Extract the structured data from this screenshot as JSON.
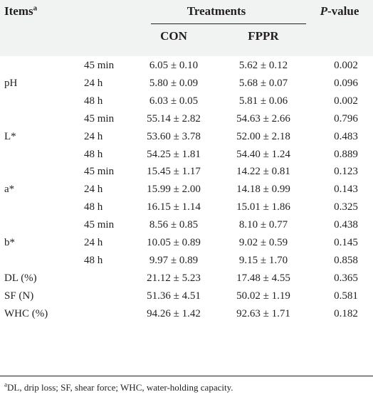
{
  "header": {
    "items_label": "Items",
    "items_sup": "a",
    "treatments_label": "Treatments",
    "pvalue_italic": "P",
    "pvalue_rest": "-value",
    "col_con": "CON",
    "col_fppr": "FPPR"
  },
  "groups": [
    {
      "label": "pH",
      "rows": [
        {
          "time": "45 min",
          "con": "6.05 ± 0.10",
          "fppr": "5.62 ± 0.12",
          "p": "0.002"
        },
        {
          "time": "24 h",
          "con": "5.80 ± 0.09",
          "fppr": "5.68 ± 0.07",
          "p": "0.096"
        },
        {
          "time": "48 h",
          "con": "6.03 ± 0.05",
          "fppr": "5.81 ± 0.06",
          "p": "0.002"
        }
      ]
    },
    {
      "label": "L*",
      "rows": [
        {
          "time": "45 min",
          "con": "55.14 ± 2.82",
          "fppr": "54.63 ± 2.66",
          "p": "0.796"
        },
        {
          "time": "24 h",
          "con": "53.60 ± 3.78",
          "fppr": "52.00 ± 2.18",
          "p": "0.483"
        },
        {
          "time": "48 h",
          "con": "54.25 ± 1.81",
          "fppr": "54.40 ± 1.24",
          "p": "0.889"
        }
      ]
    },
    {
      "label": "a*",
      "rows": [
        {
          "time": "45 min",
          "con": "15.45 ± 1.17",
          "fppr": "14.22 ± 0.81",
          "p": "0.123"
        },
        {
          "time": "24 h",
          "con": "15.99 ± 2.00",
          "fppr": "14.18 ± 0.99",
          "p": "0.143"
        },
        {
          "time": "48 h",
          "con": "16.15 ± 1.14",
          "fppr": "15.01 ± 1.86",
          "p": "0.325"
        }
      ]
    },
    {
      "label": "b*",
      "rows": [
        {
          "time": "45 min",
          "con": "8.56 ± 0.85",
          "fppr": "8.10 ± 0.77",
          "p": "0.438"
        },
        {
          "time": "24 h",
          "con": "10.05 ± 0.89",
          "fppr": "9.02 ± 0.59",
          "p": "0.145"
        },
        {
          "time": "48 h",
          "con": "9.97 ± 0.89",
          "fppr": "9.15 ± 1.70",
          "p": "0.858"
        }
      ]
    }
  ],
  "singles": [
    {
      "label": "DL (%)",
      "con": "21.12 ± 5.23",
      "fppr": "17.48 ± 4.55",
      "p": "0.365"
    },
    {
      "label": "SF (N)",
      "con": "51.36 ± 4.51",
      "fppr": "50.02 ± 1.19",
      "p": "0.581"
    },
    {
      "label": "WHC (%)",
      "con": "94.26 ± 1.42",
      "fppr": "92.63 ± 1.71",
      "p": "0.182"
    }
  ],
  "footnote": {
    "sup": "a",
    "text": "DL, drip loss; SF, shear force; WHC, water-holding capacity."
  }
}
